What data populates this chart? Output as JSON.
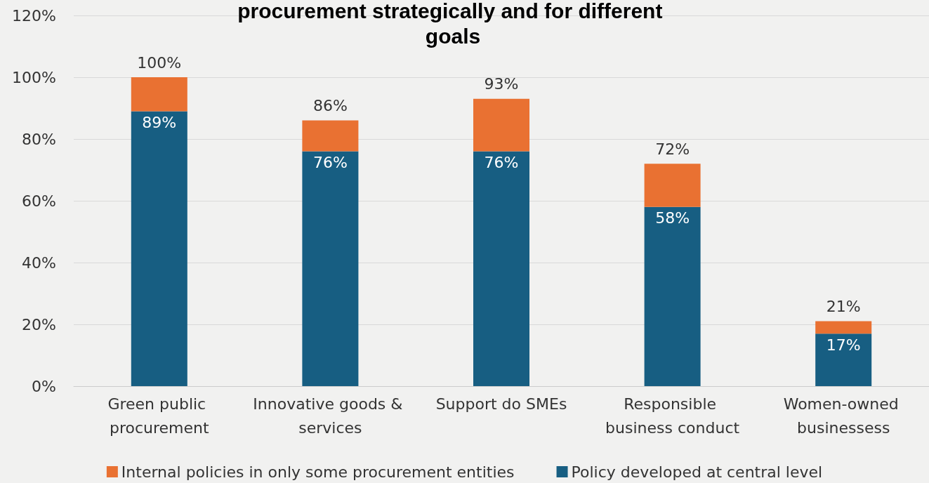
{
  "chart_data": {
    "type": "bar",
    "title": "procurement strategically and for different goals",
    "categories": [
      "Green public procurement",
      "Innovative goods & services",
      "Support do SMEs",
      "Responsible business conduct",
      "Women-owned businessess"
    ],
    "stacked": true,
    "series": [
      {
        "name": "Policy developed at central level",
        "color": "#175e82",
        "values": [
          89,
          76,
          76,
          58,
          17
        ],
        "value_labels": [
          "89%",
          "76%",
          "76%",
          "58%",
          "17%"
        ]
      },
      {
        "name": "Internal policies in only some procurement entities",
        "color": "#e97132",
        "values": [
          11,
          10,
          17,
          14,
          4
        ]
      }
    ],
    "totals": [
      "100%",
      "86%",
      "93%",
      "72%",
      "21%"
    ],
    "ylim": [
      0,
      120
    ],
    "yticks": [
      {
        "value": 0,
        "label": "0%"
      },
      {
        "value": 20,
        "label": "20%"
      },
      {
        "value": 40,
        "label": "40%"
      },
      {
        "value": 60,
        "label": "60%"
      },
      {
        "value": 80,
        "label": "80%"
      },
      {
        "value": 100,
        "label": "100%"
      },
      {
        "value": 120,
        "label": "120%"
      }
    ],
    "grid": "y",
    "legend": "bottom"
  }
}
